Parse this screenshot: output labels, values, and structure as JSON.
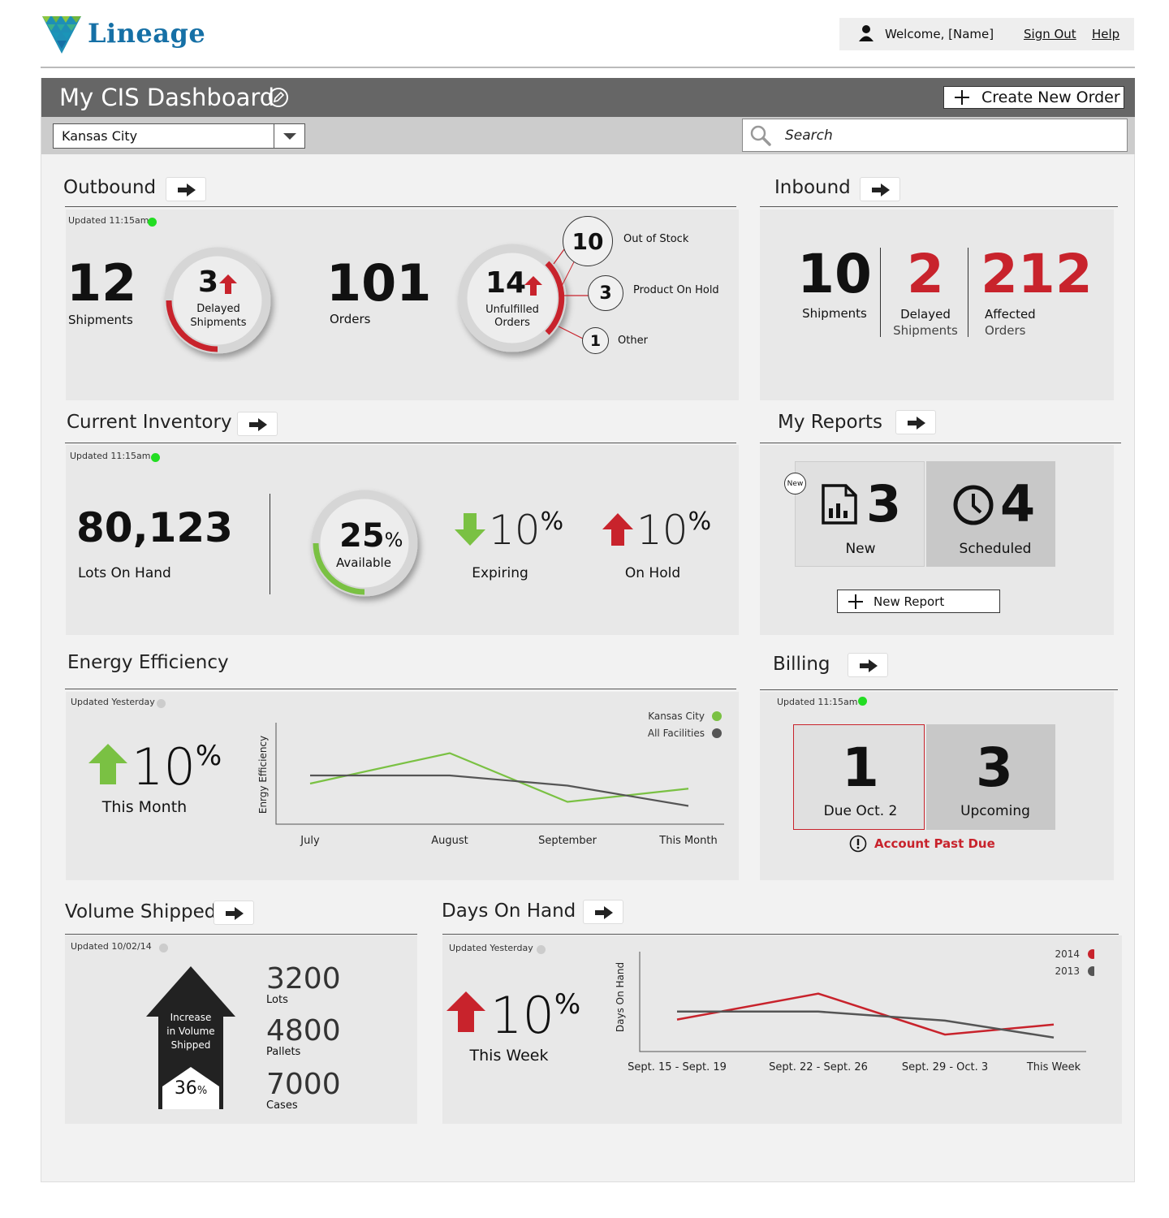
{
  "logo": {
    "text": "Lineage"
  },
  "user": {
    "welcome": "Welcome, [Name]",
    "sign_out": "Sign Out",
    "help": "Help"
  },
  "header": {
    "title": "My CIS Dashboard",
    "create_btn": "Create New Order"
  },
  "filter": {
    "location": "Kansas City",
    "search_placeholder": "Search"
  },
  "outbound": {
    "title": "Outbound",
    "updated": "Updated 11:15am",
    "shipments_value": "12",
    "shipments_label": "Shipments",
    "delayed_value": "3",
    "delayed_label1": "Delayed",
    "delayed_label2": "Shipments",
    "orders_value": "101",
    "orders_label": "Orders",
    "unfulfilled_value": "14",
    "unfulfilled_label1": "Unfulfilled",
    "unfulfilled_label2": "Orders",
    "out_of_stock_value": "10",
    "out_of_stock_label": "Out of Stock",
    "on_hold_value": "3",
    "on_hold_label": "Product On Hold",
    "other_value": "1",
    "other_label": "Other"
  },
  "inbound": {
    "title": "Inbound",
    "shipments_value": "10",
    "shipments_label": "Shipments",
    "delayed_value": "2",
    "delayed_label1": "Delayed",
    "delayed_label2": "Shipments",
    "affected_value": "212",
    "affected_label1": "Affected",
    "affected_label2": "Orders"
  },
  "inventory": {
    "title": "Current Inventory",
    "updated": "Updated 11:15am",
    "lots_value": "80,123",
    "lots_label": "Lots On Hand",
    "available_value": "25",
    "available_pct": "%",
    "available_label": "Available",
    "available_fraction": 0.25,
    "expiring_value": "10",
    "expiring_pct": "%",
    "expiring_label": "Expiring",
    "onhold_value": "10",
    "onhold_pct": "%",
    "onhold_label": "On Hold"
  },
  "reports": {
    "title": "My Reports",
    "new_badge": "New",
    "new_value": "3",
    "new_label": "New",
    "scheduled_value": "4",
    "scheduled_label": "Scheduled",
    "new_report_btn": "New Report"
  },
  "energy": {
    "title": "Energy Efficiency",
    "updated": "Updated Yesterday",
    "change_value": "10",
    "change_pct": "%",
    "change_label": "This Month"
  },
  "billing": {
    "title": "Billing",
    "updated": "Updated 11:15am",
    "due_value": "1",
    "due_label": "Due Oct. 2",
    "upcoming_value": "3",
    "upcoming_label": "Upcoming",
    "past_due": "Account Past Due"
  },
  "volume": {
    "title": "Volume Shipped",
    "updated": "Updated 10/02/14",
    "arrow_l1": "Increase",
    "arrow_l2": "in Volume",
    "arrow_l3": "Shipped",
    "arrow_pct": "36",
    "arrow_pct_sign": "%",
    "lots_value": "3200",
    "lots_label": "Lots",
    "pallets_value": "4800",
    "pallets_label": "Pallets",
    "cases_value": "7000",
    "cases_label": "Cases"
  },
  "days": {
    "title": "Days On Hand",
    "updated": "Updated Yesterday",
    "change_value": "10",
    "change_pct": "%",
    "change_label": "This Week"
  },
  "colors": {
    "red": "#c8232c",
    "green": "#7ac143",
    "dark": "#555555",
    "bright_green": "#22dd22"
  },
  "chart_data": [
    {
      "type": "line",
      "ylabel": "Enrgy Efficiency",
      "xlabel": "",
      "categories": [
        "July",
        "August",
        "September",
        "This Month"
      ],
      "series": [
        {
          "name": "Kansas City",
          "values": [
            40,
            70,
            22,
            35
          ]
        },
        {
          "name": "All Facilities",
          "values": [
            48,
            48,
            38,
            18
          ]
        }
      ],
      "ylim": [
        0,
        100
      ],
      "legend": "top-right",
      "grid": false
    },
    {
      "type": "line",
      "ylabel": "Days On Hand",
      "xlabel": "",
      "categories": [
        "Sept. 15 - Sept. 19",
        "Sept. 22 - Sept. 26",
        "Sept. 29 - Oct. 3",
        "This Week"
      ],
      "series": [
        {
          "name": "2014",
          "values": [
            32,
            58,
            17,
            27
          ]
        },
        {
          "name": "2013",
          "values": [
            40,
            40,
            31,
            14
          ]
        }
      ],
      "ylim": [
        0,
        100
      ],
      "legend": "top-right",
      "grid": false
    }
  ]
}
